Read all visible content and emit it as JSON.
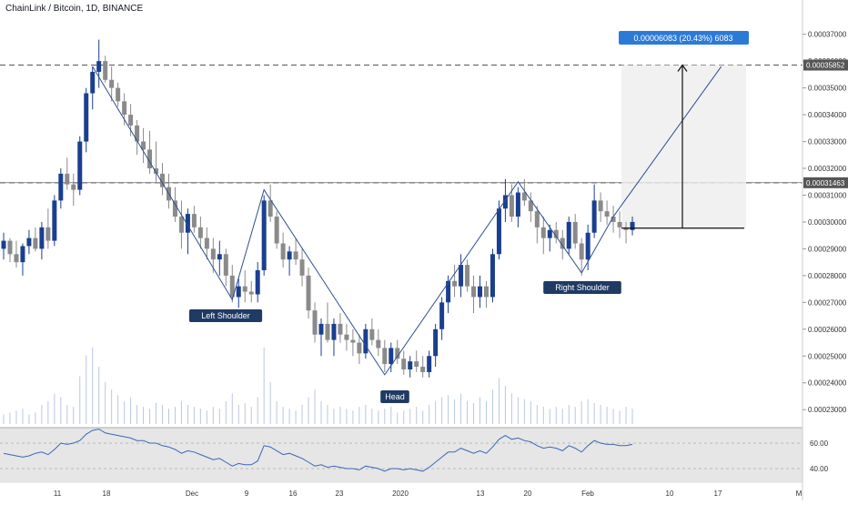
{
  "title": "ChainLink / Bitcoin, 1D, BINANCE",
  "colors": {
    "bull": "#1b3f8f",
    "bear": "#8a8a8a",
    "pattern_line": "#2f4f8f",
    "label_bg": "#1f3a63",
    "measure_bg": "#2b7bd6",
    "grid_dash": "#555555",
    "rsi_line": "#3a68b5",
    "rsi_bg": "#e6e6e6",
    "volume": "#b9c7e0",
    "axis_text": "#333333"
  },
  "chart_data": {
    "type": "candlestick",
    "symbol": "ChainLink / Bitcoin",
    "interval": "1D",
    "exchange": "BINANCE",
    "y_axis_ticks": [
      "0.00037000",
      "0.00036000",
      "0.00035000",
      "0.00034000",
      "0.00033000",
      "0.00032000",
      "0.00031000",
      "0.00030000",
      "0.00029000",
      "0.00028000",
      "0.00027000",
      "0.00026000",
      "0.00025000",
      "0.00024000",
      "0.00023000"
    ],
    "ylim": [
      0.000226,
      0.000376
    ],
    "x_axis_ticks": [
      "11",
      "18",
      "Dec",
      "9",
      "16",
      "23",
      "2020",
      "13",
      "20",
      "Feb",
      "10",
      "17",
      "M"
    ],
    "highlighted_levels": [
      {
        "value": 0.00035852,
        "label": "0.00035852"
      },
      {
        "value": 0.00031463,
        "label": "0.00031463"
      }
    ],
    "pattern_labels": [
      "Left Shoulder",
      "Head",
      "Right Shoulder"
    ],
    "measure_label": "0.00006083 (20.43%) 6083",
    "rsi_ticks": [
      "60.00",
      "40.00"
    ],
    "candles_ohlc": [
      [
        0.00029,
        0.000296,
        0.000286,
        0.000293
      ],
      [
        0.000293,
        0.000294,
        0.000285,
        0.000288
      ],
      [
        0.000288,
        0.000293,
        0.000283,
        0.000285
      ],
      [
        0.000285,
        0.000292,
        0.00028,
        0.000291
      ],
      [
        0.000291,
        0.000297,
        0.000288,
        0.000294
      ],
      [
        0.000294,
        0.000298,
        0.000289,
        0.00029
      ],
      [
        0.00029,
        0.0003,
        0.000286,
        0.000298
      ],
      [
        0.000298,
        0.000305,
        0.00029,
        0.000293
      ],
      [
        0.000293,
        0.00031,
        0.000291,
        0.000308
      ],
      [
        0.000308,
        0.00032,
        0.000305,
        0.000318
      ],
      [
        0.000318,
        0.000324,
        0.000312,
        0.000314
      ],
      [
        0.000314,
        0.000318,
        0.000306,
        0.000312
      ],
      [
        0.000312,
        0.000332,
        0.00031,
        0.00033
      ],
      [
        0.00033,
        0.00035,
        0.000326,
        0.000348
      ],
      [
        0.000348,
        0.000358,
        0.000342,
        0.000356
      ],
      [
        0.000356,
        0.000368,
        0.00035,
        0.00036
      ],
      [
        0.00036,
        0.000362,
        0.000352,
        0.000353
      ],
      [
        0.000353,
        0.000358,
        0.000345,
        0.00035
      ],
      [
        0.00035,
        0.000352,
        0.000343,
        0.000345
      ],
      [
        0.000345,
        0.000348,
        0.000336,
        0.00034
      ],
      [
        0.00034,
        0.000344,
        0.000332,
        0.000336
      ],
      [
        0.000336,
        0.000338,
        0.000325,
        0.00033
      ],
      [
        0.00033,
        0.000335,
        0.000322,
        0.000327
      ],
      [
        0.000327,
        0.000334,
        0.000318,
        0.00032
      ],
      [
        0.00032,
        0.00033,
        0.000315,
        0.000318
      ],
      [
        0.000318,
        0.000322,
        0.00031,
        0.000313
      ],
      [
        0.000313,
        0.000318,
        0.000305,
        0.000308
      ],
      [
        0.000308,
        0.000313,
        0.0003,
        0.000302
      ],
      [
        0.000302,
        0.000308,
        0.00029,
        0.000296
      ],
      [
        0.000296,
        0.000305,
        0.000288,
        0.000303
      ],
      [
        0.000303,
        0.000306,
        0.000296,
        0.000298
      ],
      [
        0.000298,
        0.000302,
        0.00029,
        0.000294
      ],
      [
        0.000294,
        0.000298,
        0.000286,
        0.00029
      ],
      [
        0.00029,
        0.000294,
        0.000281,
        0.000286
      ],
      [
        0.000286,
        0.000293,
        0.00028,
        0.000288
      ],
      [
        0.000288,
        0.00029,
        0.000276,
        0.00028
      ],
      [
        0.00028,
        0.000284,
        0.00027,
        0.000272
      ],
      [
        0.000272,
        0.000279,
        0.000268,
        0.000276
      ],
      [
        0.000276,
        0.000282,
        0.00027,
        0.000274
      ],
      [
        0.000274,
        0.000278,
        0.00027,
        0.000273
      ],
      [
        0.000273,
        0.000285,
        0.00027,
        0.000282
      ],
      [
        0.000282,
        0.00031,
        0.00028,
        0.000308
      ],
      [
        0.000308,
        0.000314,
        0.0003,
        0.000302
      ],
      [
        0.000302,
        0.000304,
        0.00029,
        0.000292
      ],
      [
        0.000292,
        0.000296,
        0.000283,
        0.000286
      ],
      [
        0.000286,
        0.000291,
        0.00028,
        0.000289
      ],
      [
        0.000289,
        0.000294,
        0.000284,
        0.000286
      ],
      [
        0.000286,
        0.00029,
        0.000276,
        0.00028
      ],
      [
        0.00028,
        0.000283,
        0.000264,
        0.000267
      ],
      [
        0.000267,
        0.00027,
        0.000255,
        0.000258
      ],
      [
        0.000258,
        0.000264,
        0.00025,
        0.000262
      ],
      [
        0.000262,
        0.00027,
        0.000255,
        0.000256
      ],
      [
        0.000256,
        0.000264,
        0.00025,
        0.000262
      ],
      [
        0.000262,
        0.000266,
        0.000255,
        0.000258
      ],
      [
        0.000258,
        0.000262,
        0.000252,
        0.000256
      ],
      [
        0.000256,
        0.00026,
        0.00025,
        0.000255
      ],
      [
        0.000255,
        0.000258,
        0.000247,
        0.000251
      ],
      [
        0.000251,
        0.000262,
        0.000249,
        0.00026
      ],
      [
        0.00026,
        0.000264,
        0.000254,
        0.000256
      ],
      [
        0.000256,
        0.00026,
        0.00025,
        0.000253
      ],
      [
        0.000253,
        0.000256,
        0.000244,
        0.000247
      ],
      [
        0.000247,
        0.000255,
        0.000244,
        0.000253
      ],
      [
        0.000253,
        0.000256,
        0.000247,
        0.000249
      ],
      [
        0.000249,
        0.000252,
        0.000243,
        0.000245
      ],
      [
        0.000245,
        0.00025,
        0.000242,
        0.000248
      ],
      [
        0.000248,
        0.000252,
        0.000244,
        0.000246
      ],
      [
        0.000246,
        0.00025,
        0.000242,
        0.000244
      ],
      [
        0.000244,
        0.000252,
        0.000242,
        0.00025
      ],
      [
        0.00025,
        0.000262,
        0.000246,
        0.00026
      ],
      [
        0.00026,
        0.000272,
        0.000256,
        0.00027
      ],
      [
        0.00027,
        0.00028,
        0.000266,
        0.000278
      ],
      [
        0.000278,
        0.000284,
        0.000272,
        0.000276
      ],
      [
        0.000276,
        0.000288,
        0.000272,
        0.000284
      ],
      [
        0.000284,
        0.000286,
        0.000274,
        0.000276
      ],
      [
        0.000276,
        0.00028,
        0.000266,
        0.000272
      ],
      [
        0.000272,
        0.00028,
        0.000268,
        0.000276
      ],
      [
        0.000276,
        0.000278,
        0.000268,
        0.000272
      ],
      [
        0.000272,
        0.00029,
        0.00027,
        0.000288
      ],
      [
        0.000288,
        0.000308,
        0.000286,
        0.000305
      ],
      [
        0.000305,
        0.000316,
        0.0003,
        0.00031
      ],
      [
        0.00031,
        0.000314,
        0.0003,
        0.000302
      ],
      [
        0.000302,
        0.000313,
        0.000298,
        0.000311
      ],
      [
        0.000311,
        0.000316,
        0.000306,
        0.000308
      ],
      [
        0.000308,
        0.000311,
        0.0003,
        0.000304
      ],
      [
        0.000304,
        0.000306,
        0.000292,
        0.000298
      ],
      [
        0.000298,
        0.000302,
        0.000288,
        0.000294
      ],
      [
        0.000294,
        0.000299,
        0.000289,
        0.000297
      ],
      [
        0.000297,
        0.0003,
        0.000292,
        0.000294
      ],
      [
        0.000294,
        0.000297,
        0.000286,
        0.00029
      ],
      [
        0.00029,
        0.000302,
        0.000288,
        0.0003
      ],
      [
        0.0003,
        0.000303,
        0.00029,
        0.000292
      ],
      [
        0.000292,
        0.000294,
        0.00028,
        0.000286
      ],
      [
        0.000286,
        0.000299,
        0.000282,
        0.000296
      ],
      [
        0.000296,
        0.000314,
        0.000294,
        0.000308
      ],
      [
        0.000308,
        0.000311,
        0.0003,
        0.000304
      ],
      [
        0.000304,
        0.000308,
        0.000299,
        0.000302
      ],
      [
        0.000302,
        0.000306,
        0.000296,
        0.0003
      ],
      [
        0.0003,
        0.000304,
        0.000294,
        0.000298
      ],
      [
        0.000298,
        0.0003,
        0.000292,
        0.000297
      ],
      [
        0.000297,
        0.000302,
        0.000295,
        0.0003
      ]
    ],
    "volume": [
      5,
      6,
      7,
      8,
      5,
      6,
      10,
      12,
      16,
      14,
      10,
      9,
      25,
      36,
      40,
      30,
      22,
      18,
      15,
      12,
      14,
      10,
      9,
      8,
      11,
      10,
      8,
      9,
      12,
      10,
      9,
      8,
      7,
      9,
      8,
      12,
      16,
      10,
      11,
      9,
      14,
      40,
      22,
      12,
      9,
      8,
      7,
      10,
      14,
      18,
      12,
      10,
      8,
      9,
      8,
      7,
      9,
      10,
      8,
      7,
      8,
      9,
      6,
      7,
      8,
      9,
      7,
      10,
      12,
      14,
      15,
      13,
      16,
      12,
      11,
      14,
      12,
      18,
      24,
      20,
      16,
      14,
      13,
      12,
      10,
      9,
      8,
      9,
      8,
      10,
      9,
      12,
      13,
      11,
      10,
      9,
      8,
      7,
      9,
      8
    ],
    "rsi": [
      52,
      51,
      50,
      49,
      50,
      52,
      53,
      51,
      55,
      60,
      59,
      60,
      62,
      67,
      70,
      71,
      68,
      67,
      66,
      65,
      64,
      62,
      62,
      60,
      60,
      58,
      57,
      55,
      52,
      54,
      53,
      51,
      49,
      47,
      48,
      45,
      42,
      44,
      43,
      43,
      46,
      58,
      57,
      54,
      51,
      52,
      50,
      48,
      45,
      42,
      43,
      41,
      42,
      41,
      40,
      40,
      39,
      42,
      41,
      40,
      38,
      40,
      40,
      39,
      40,
      39,
      38,
      41,
      45,
      49,
      53,
      53,
      56,
      54,
      52,
      54,
      52,
      57,
      63,
      66,
      63,
      64,
      62,
      61,
      58,
      56,
      57,
      56,
      54,
      58,
      56,
      53,
      58,
      62,
      60,
      59,
      59,
      58,
      58,
      59
    ]
  }
}
